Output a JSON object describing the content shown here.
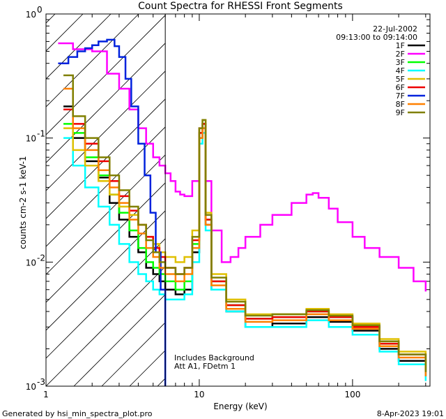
{
  "chart_data": {
    "type": "line",
    "title": "Count Spectra for RHESSI Front Segments",
    "xlabel": "Energy (keV)",
    "ylabel": "counts cm-2 s-1 keV-1",
    "xscale": "log",
    "yscale": "log",
    "xlim": [
      1,
      320
    ],
    "ylim": [
      0.001,
      1.0
    ],
    "x_tick_labels": [
      "1",
      "10",
      "100"
    ],
    "y_tick_labels": [
      "10",
      "10",
      "10",
      "10"
    ],
    "y_tick_exponents": [
      "0",
      "-1",
      "-2",
      "-3"
    ],
    "legend_placement": "top-right",
    "legend_header": [
      "22-Jul-2002",
      "09:13:00 to 09:14:00"
    ],
    "annotations": [
      "Includes Background",
      "Att A1, FDetm 1"
    ],
    "attenuator_line_x": 6,
    "series": [
      {
        "name": "1F",
        "color": "#000000",
        "x": [
          1.3,
          1.5,
          1.8,
          2.2,
          2.6,
          3.0,
          3.5,
          4.0,
          4.5,
          5.0,
          5.5,
          6.0,
          7.0,
          8.0,
          9.0,
          10.0,
          10.5,
          11.0,
          12.0,
          15.0,
          20.0,
          30.0,
          50.0,
          70.0,
          100.0,
          150.0,
          200.0,
          300.0
        ],
        "y": [
          0.18,
          0.1,
          0.065,
          0.048,
          0.03,
          0.022,
          0.016,
          0.012,
          0.009,
          0.008,
          0.007,
          0.006,
          0.0055,
          0.006,
          0.012,
          0.1,
          0.12,
          0.02,
          0.006,
          0.004,
          0.003,
          0.0032,
          0.0036,
          0.0033,
          0.0028,
          0.002,
          0.0016,
          0.0012
        ]
      },
      {
        "name": "2F",
        "color": "#ff00ff",
        "x": [
          1.2,
          1.5,
          2.0,
          2.5,
          3.0,
          3.5,
          4.0,
          4.5,
          5.0,
          5.5,
          6.0,
          6.5,
          7.0,
          7.5,
          8.0,
          9.0,
          10.0,
          10.5,
          11.0,
          12.0,
          14.0,
          16.0,
          18.0,
          20.0,
          25.0,
          30.0,
          40.0,
          50.0,
          55.0,
          60.0,
          70.0,
          80.0,
          100.0,
          120.0,
          150.0,
          200.0,
          250.0,
          300.0
        ],
        "y": [
          0.58,
          0.52,
          0.5,
          0.33,
          0.25,
          0.17,
          0.12,
          0.09,
          0.07,
          0.06,
          0.052,
          0.045,
          0.037,
          0.035,
          0.034,
          0.045,
          0.12,
          0.13,
          0.045,
          0.018,
          0.01,
          0.011,
          0.013,
          0.016,
          0.02,
          0.024,
          0.03,
          0.035,
          0.036,
          0.033,
          0.027,
          0.021,
          0.016,
          0.013,
          0.011,
          0.009,
          0.007,
          0.0058
        ]
      },
      {
        "name": "3F",
        "color": "#00ff00",
        "x": [
          1.3,
          1.5,
          1.8,
          2.2,
          2.6,
          3.0,
          3.5,
          4.0,
          4.5,
          5.0,
          5.5,
          6.0,
          7.0,
          8.0,
          9.0,
          10.0,
          10.5,
          11.0,
          12.0,
          15.0,
          20.0,
          30.0,
          50.0,
          70.0,
          100.0,
          150.0,
          200.0,
          300.0
        ],
        "y": [
          0.13,
          0.11,
          0.07,
          0.05,
          0.035,
          0.025,
          0.018,
          0.013,
          0.01,
          0.009,
          0.008,
          0.007,
          0.006,
          0.007,
          0.014,
          0.11,
          0.13,
          0.022,
          0.007,
          0.0045,
          0.0035,
          0.0036,
          0.004,
          0.0036,
          0.003,
          0.0022,
          0.0018,
          0.0013
        ]
      },
      {
        "name": "4F",
        "color": "#00ffff",
        "x": [
          1.3,
          1.5,
          1.8,
          2.2,
          2.6,
          3.0,
          3.5,
          4.0,
          4.5,
          5.0,
          5.5,
          6.0,
          7.0,
          8.0,
          9.0,
          10.0,
          10.5,
          11.0,
          12.0,
          15.0,
          20.0,
          30.0,
          50.0,
          70.0,
          100.0,
          150.0,
          200.0,
          300.0
        ],
        "y": [
          0.1,
          0.06,
          0.04,
          0.028,
          0.02,
          0.014,
          0.01,
          0.008,
          0.007,
          0.006,
          0.0055,
          0.005,
          0.005,
          0.0055,
          0.01,
          0.09,
          0.11,
          0.018,
          0.006,
          0.004,
          0.003,
          0.003,
          0.0034,
          0.003,
          0.0026,
          0.0019,
          0.0015,
          0.0011
        ]
      },
      {
        "name": "5F",
        "color": "#e0c000",
        "x": [
          1.3,
          1.5,
          1.8,
          2.2,
          2.6,
          3.0,
          3.5,
          4.0,
          4.5,
          5.0,
          5.5,
          6.0,
          7.0,
          8.0,
          9.0,
          10.0,
          10.5,
          11.0,
          12.0,
          15.0,
          20.0,
          30.0,
          50.0,
          70.0,
          100.0,
          150.0,
          200.0,
          300.0
        ],
        "y": [
          0.12,
          0.08,
          0.06,
          0.045,
          0.035,
          0.028,
          0.024,
          0.02,
          0.016,
          0.014,
          0.012,
          0.011,
          0.01,
          0.011,
          0.018,
          0.12,
          0.14,
          0.025,
          0.008,
          0.005,
          0.0038,
          0.0038,
          0.0042,
          0.0038,
          0.0032,
          0.0024,
          0.0019,
          0.0014
        ]
      },
      {
        "name": "6F",
        "color": "#ee0000",
        "x": [
          1.3,
          1.5,
          1.8,
          2.2,
          2.6,
          3.0,
          3.5,
          4.0,
          4.5,
          5.0,
          5.5,
          6.0,
          7.0,
          8.0,
          9.0,
          10.0,
          10.5,
          11.0,
          12.0,
          15.0,
          20.0,
          30.0,
          50.0,
          70.0,
          100.0,
          150.0,
          200.0,
          300.0
        ],
        "y": [
          0.17,
          0.13,
          0.09,
          0.065,
          0.045,
          0.034,
          0.026,
          0.02,
          0.016,
          0.013,
          0.011,
          0.009,
          0.008,
          0.009,
          0.015,
          0.11,
          0.13,
          0.022,
          0.007,
          0.0045,
          0.0035,
          0.0036,
          0.004,
          0.0036,
          0.003,
          0.0022,
          0.0018,
          0.0013
        ]
      },
      {
        "name": "7F",
        "color": "#0022dd",
        "x": [
          1.2,
          1.4,
          1.6,
          1.8,
          2.0,
          2.2,
          2.5,
          2.8,
          3.0,
          3.3,
          3.6,
          4.0,
          4.4,
          4.8,
          5.2,
          5.6,
          6.0
        ],
        "y": [
          0.4,
          0.45,
          0.5,
          0.53,
          0.56,
          0.6,
          0.62,
          0.55,
          0.45,
          0.3,
          0.18,
          0.09,
          0.05,
          0.025,
          0.012,
          0.006,
          0.001
        ]
      },
      {
        "name": "8F",
        "color": "#ff8000",
        "x": [
          1.3,
          1.5,
          1.8,
          2.2,
          2.6,
          3.0,
          3.5,
          4.0,
          4.5,
          5.0,
          5.5,
          6.0,
          7.0,
          8.0,
          9.0,
          10.0,
          10.5,
          11.0,
          12.0,
          15.0,
          20.0,
          30.0,
          50.0,
          70.0,
          100.0,
          150.0,
          200.0,
          300.0
        ],
        "y": [
          0.25,
          0.12,
          0.08,
          0.055,
          0.04,
          0.03,
          0.022,
          0.017,
          0.013,
          0.011,
          0.009,
          0.008,
          0.007,
          0.008,
          0.013,
          0.1,
          0.12,
          0.02,
          0.0065,
          0.0042,
          0.0033,
          0.0034,
          0.0038,
          0.0034,
          0.0029,
          0.0021,
          0.0017,
          0.0012
        ]
      },
      {
        "name": "9F",
        "color": "#808000",
        "x": [
          1.3,
          1.5,
          1.8,
          2.2,
          2.6,
          3.0,
          3.5,
          4.0,
          4.5,
          5.0,
          5.5,
          6.0,
          7.0,
          8.0,
          9.0,
          10.0,
          10.5,
          11.0,
          12.0,
          15.0,
          20.0,
          30.0,
          50.0,
          70.0,
          100.0,
          150.0,
          200.0,
          300.0
        ],
        "y": [
          0.32,
          0.15,
          0.1,
          0.07,
          0.05,
          0.038,
          0.028,
          0.02,
          0.015,
          0.012,
          0.01,
          0.009,
          0.008,
          0.009,
          0.016,
          0.12,
          0.14,
          0.024,
          0.0075,
          0.0048,
          0.0037,
          0.0038,
          0.0041,
          0.0037,
          0.0031,
          0.0023,
          0.0018,
          0.0013
        ]
      }
    ]
  },
  "footer": {
    "left": "Generated by hsi_min_spectra_plot.pro",
    "right": "8-Apr-2023 19:01"
  }
}
